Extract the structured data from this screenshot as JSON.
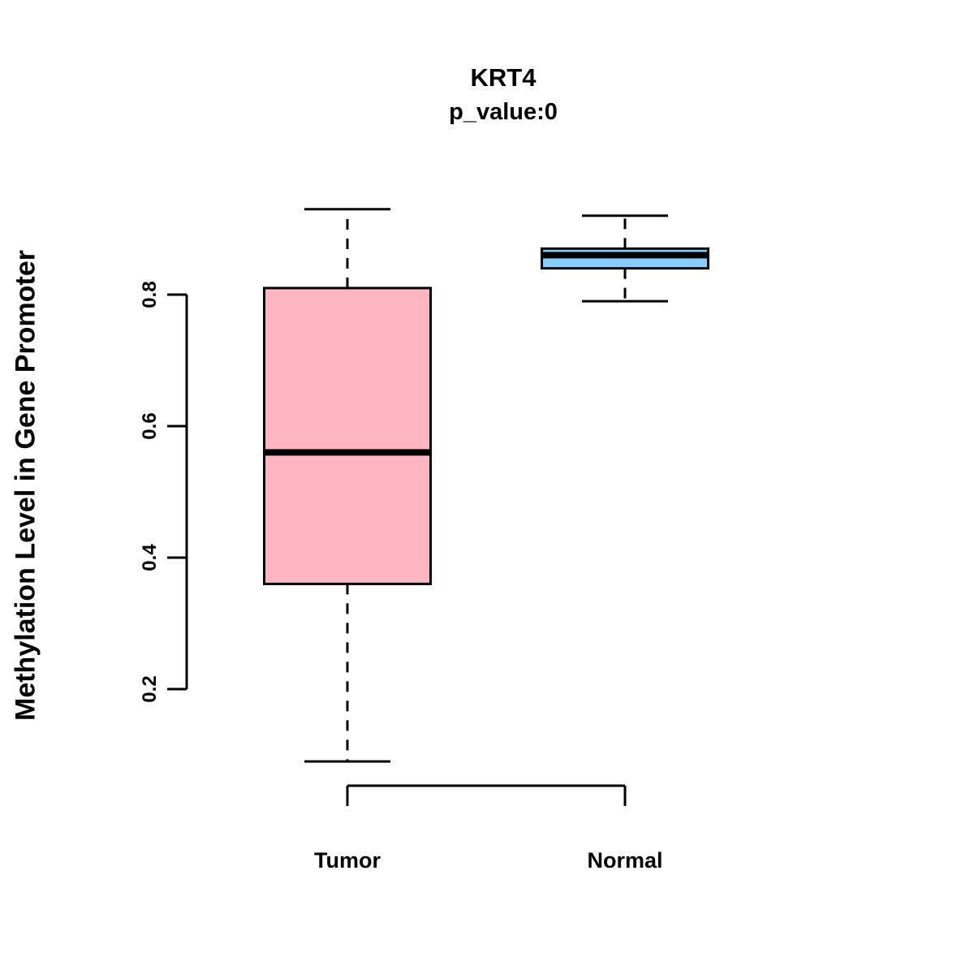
{
  "chart_data": {
    "type": "boxplot",
    "title": "KRT4",
    "subtitle": "p_value:0",
    "ylabel": "Methylation Level in Gene Promoter",
    "xlabel": "",
    "categories": [
      "Tumor",
      "Normal"
    ],
    "yticks": [
      0.2,
      0.4,
      0.6,
      0.8
    ],
    "ylim": [
      0.05,
      0.95
    ],
    "grid": false,
    "legend": "none",
    "series": [
      {
        "name": "Tumor",
        "min": 0.09,
        "q1": 0.36,
        "median": 0.56,
        "q3": 0.81,
        "max": 0.93,
        "color": "#FFB6C1"
      },
      {
        "name": "Normal",
        "min": 0.79,
        "q1": 0.84,
        "median": 0.86,
        "q3": 0.87,
        "max": 0.92,
        "color": "#87CEFA"
      }
    ],
    "stroke_color": "#000000"
  }
}
